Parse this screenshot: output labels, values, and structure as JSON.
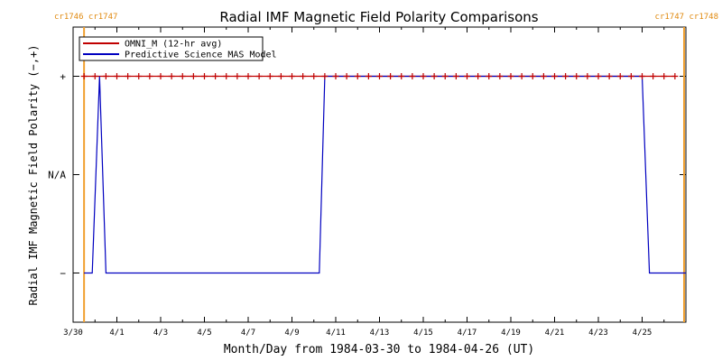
{
  "chart_data": {
    "type": "line",
    "title": "Radial IMF Magnetic Field Polarity Comparisons",
    "xlabel": "Month/Day from 1984-03-30 to 1984-04-26 (UT)",
    "ylabel": "Radial IMF Magnetic Field Polarity (−,+)",
    "x_range": [
      "1984-03-30",
      "1984-04-27"
    ],
    "y_range": [
      -1.5,
      1.5
    ],
    "x_ticks": [
      {
        "date": "1984-03-30",
        "label": "3/30"
      },
      {
        "date": "1984-04-01",
        "label": "4/1"
      },
      {
        "date": "1984-04-03",
        "label": "4/3"
      },
      {
        "date": "1984-04-05",
        "label": "4/5"
      },
      {
        "date": "1984-04-07",
        "label": "4/7"
      },
      {
        "date": "1984-04-09",
        "label": "4/9"
      },
      {
        "date": "1984-04-11",
        "label": "4/11"
      },
      {
        "date": "1984-04-13",
        "label": "4/13"
      },
      {
        "date": "1984-04-15",
        "label": "4/15"
      },
      {
        "date": "1984-04-17",
        "label": "4/17"
      },
      {
        "date": "1984-04-19",
        "label": "4/19"
      },
      {
        "date": "1984-04-21",
        "label": "4/21"
      },
      {
        "date": "1984-04-23",
        "label": "4/23"
      },
      {
        "date": "1984-04-25",
        "label": "4/25"
      }
    ],
    "y_ticks": [
      {
        "value": 1,
        "label": "+"
      },
      {
        "value": 0,
        "label": "N/A"
      },
      {
        "value": -1,
        "label": "−"
      }
    ],
    "legend": {
      "position": "top-left"
    },
    "carrington_markers": [
      {
        "date": "1984-03-30T12:00",
        "labels": [
          "cr1746",
          "cr1747"
        ],
        "side": "left"
      },
      {
        "date": "1984-04-26T22:00",
        "labels": [
          "cr1747",
          "cr1748"
        ],
        "side": "right"
      }
    ],
    "series": [
      {
        "name": "OMNI_M (12-hr avg)",
        "color": "#c00000",
        "marker": "plus",
        "points": [
          [
            "1984-03-30T12:00",
            1
          ],
          [
            "1984-03-31T00:00",
            1
          ],
          [
            "1984-03-31T12:00",
            1
          ],
          [
            "1984-04-01T00:00",
            1
          ],
          [
            "1984-04-01T12:00",
            1
          ],
          [
            "1984-04-02T00:00",
            1
          ],
          [
            "1984-04-02T12:00",
            1
          ],
          [
            "1984-04-03T00:00",
            1
          ],
          [
            "1984-04-03T12:00",
            1
          ],
          [
            "1984-04-04T00:00",
            1
          ],
          [
            "1984-04-04T12:00",
            1
          ],
          [
            "1984-04-05T00:00",
            1
          ],
          [
            "1984-04-05T12:00",
            1
          ],
          [
            "1984-04-06T00:00",
            1
          ],
          [
            "1984-04-06T12:00",
            1
          ],
          [
            "1984-04-07T00:00",
            1
          ],
          [
            "1984-04-07T12:00",
            1
          ],
          [
            "1984-04-08T00:00",
            1
          ],
          [
            "1984-04-08T12:00",
            1
          ],
          [
            "1984-04-09T00:00",
            1
          ],
          [
            "1984-04-09T12:00",
            1
          ],
          [
            "1984-04-10T00:00",
            1
          ],
          [
            "1984-04-10T12:00",
            1
          ],
          [
            "1984-04-11T00:00",
            1
          ],
          [
            "1984-04-11T12:00",
            1
          ],
          [
            "1984-04-12T00:00",
            1
          ],
          [
            "1984-04-12T12:00",
            1
          ],
          [
            "1984-04-13T00:00",
            1
          ],
          [
            "1984-04-13T12:00",
            1
          ],
          [
            "1984-04-14T00:00",
            1
          ],
          [
            "1984-04-14T12:00",
            1
          ],
          [
            "1984-04-15T00:00",
            1
          ],
          [
            "1984-04-15T12:00",
            1
          ],
          [
            "1984-04-16T00:00",
            1
          ],
          [
            "1984-04-16T12:00",
            1
          ],
          [
            "1984-04-17T00:00",
            1
          ],
          [
            "1984-04-17T12:00",
            1
          ],
          [
            "1984-04-18T00:00",
            1
          ],
          [
            "1984-04-18T12:00",
            1
          ],
          [
            "1984-04-19T00:00",
            1
          ],
          [
            "1984-04-19T12:00",
            1
          ],
          [
            "1984-04-20T00:00",
            1
          ],
          [
            "1984-04-20T12:00",
            1
          ],
          [
            "1984-04-21T00:00",
            1
          ],
          [
            "1984-04-21T12:00",
            1
          ],
          [
            "1984-04-22T00:00",
            1
          ],
          [
            "1984-04-22T12:00",
            1
          ],
          [
            "1984-04-23T00:00",
            1
          ],
          [
            "1984-04-23T12:00",
            1
          ],
          [
            "1984-04-24T00:00",
            1
          ],
          [
            "1984-04-24T12:00",
            1
          ],
          [
            "1984-04-25T00:00",
            1
          ],
          [
            "1984-04-25T12:00",
            1
          ],
          [
            "1984-04-26T00:00",
            1
          ],
          [
            "1984-04-26T12:00",
            1
          ]
        ]
      },
      {
        "name": "Predictive Science MAS Model",
        "color": "#0000c0",
        "marker": "none",
        "points": [
          [
            "1984-03-30T12:00",
            -1
          ],
          [
            "1984-03-30T21:00",
            -1
          ],
          [
            "1984-03-31T05:00",
            1
          ],
          [
            "1984-03-31T12:00",
            -1
          ],
          [
            "1984-04-10T06:00",
            -1
          ],
          [
            "1984-04-10T12:00",
            1
          ],
          [
            "1984-04-25T00:00",
            1
          ],
          [
            "1984-04-25T08:00",
            -1
          ],
          [
            "1984-04-27T00:00",
            -1
          ]
        ]
      }
    ]
  }
}
